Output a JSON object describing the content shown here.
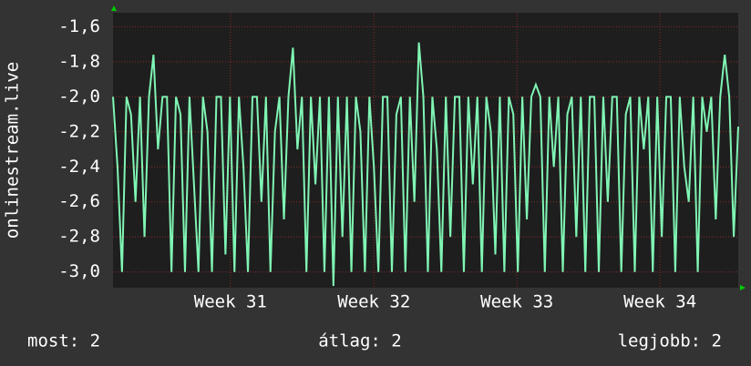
{
  "chart_data": {
    "type": "line",
    "y_label": "onlinestream.live",
    "series": [
      {
        "color": "#80f5b4",
        "values": [
          -2.0,
          -2.4,
          -3.0,
          -2.0,
          -2.1,
          -2.6,
          -2.0,
          -2.8,
          -2.0,
          -1.76,
          -2.3,
          -2.0,
          -2.0,
          -3.0,
          -2.0,
          -2.1,
          -3.0,
          -2.0,
          -2.5,
          -3.0,
          -2.0,
          -2.2,
          -3.0,
          -2.0,
          -2.0,
          -2.9,
          -2.0,
          -3.0,
          -2.0,
          -2.4,
          -3.0,
          -2.0,
          -2.0,
          -2.6,
          -2.0,
          -3.0,
          -2.2,
          -2.0,
          -2.7,
          -2.0,
          -1.72,
          -2.3,
          -2.0,
          -3.0,
          -2.0,
          -2.5,
          -2.0,
          -3.0,
          -2.0,
          -3.08,
          -2.0,
          -2.8,
          -2.0,
          -3.0,
          -2.0,
          -2.2,
          -3.0,
          -2.0,
          -2.4,
          -3.0,
          -2.0,
          -2.0,
          -3.0,
          -2.1,
          -2.0,
          -3.0,
          -2.0,
          -2.6,
          -1.69,
          -2.0,
          -3.0,
          -2.0,
          -2.3,
          -3.0,
          -2.0,
          -2.8,
          -2.0,
          -2.0,
          -3.0,
          -2.0,
          -2.5,
          -2.0,
          -3.0,
          -2.0,
          -2.2,
          -2.9,
          -2.0,
          -3.0,
          -2.0,
          -2.1,
          -3.0,
          -2.0,
          -2.7,
          -2.0,
          -1.93,
          -2.0,
          -3.0,
          -2.0,
          -2.4,
          -2.0,
          -3.0,
          -2.1,
          -2.0,
          -2.8,
          -2.0,
          -3.0,
          -2.0,
          -2.0,
          -3.0,
          -2.0,
          -2.6,
          -2.0,
          -2.0,
          -3.0,
          -2.1,
          -2.0,
          -3.0,
          -2.0,
          -2.3,
          -2.0,
          -3.0,
          -2.0,
          -2.8,
          -2.0,
          -2.0,
          -3.0,
          -2.0,
          -2.4,
          -2.6,
          -2.0,
          -3.0,
          -2.0,
          -2.2,
          -2.0,
          -2.7,
          -2.0,
          -1.76,
          -2.0,
          -2.8,
          -2.17
        ]
      }
    ],
    "xlim": [
      0,
      139
    ],
    "xticks": [
      {
        "value": 26.1,
        "label": "Week 31"
      },
      {
        "value": 58.0,
        "label": "Week 32"
      },
      {
        "value": 89.8,
        "label": "Week 33"
      },
      {
        "value": 121.6,
        "label": "Week 34"
      }
    ],
    "ylim": [
      -3.09,
      -1.52
    ],
    "yticks": [
      {
        "value": -1.6,
        "label": "-1,6"
      },
      {
        "value": -1.8,
        "label": "-1,8"
      },
      {
        "value": -2.0,
        "label": "-2,0"
      },
      {
        "value": -2.2,
        "label": "-2,2"
      },
      {
        "value": -2.4,
        "label": "-2,4"
      },
      {
        "value": -2.6,
        "label": "-2,6"
      },
      {
        "value": -2.8,
        "label": "-2,8"
      },
      {
        "value": -3.0,
        "label": "-3,0"
      }
    ],
    "grid": true,
    "footer": [
      "most: 2",
      "átlag: 2",
      "legjobb: 2"
    ]
  }
}
